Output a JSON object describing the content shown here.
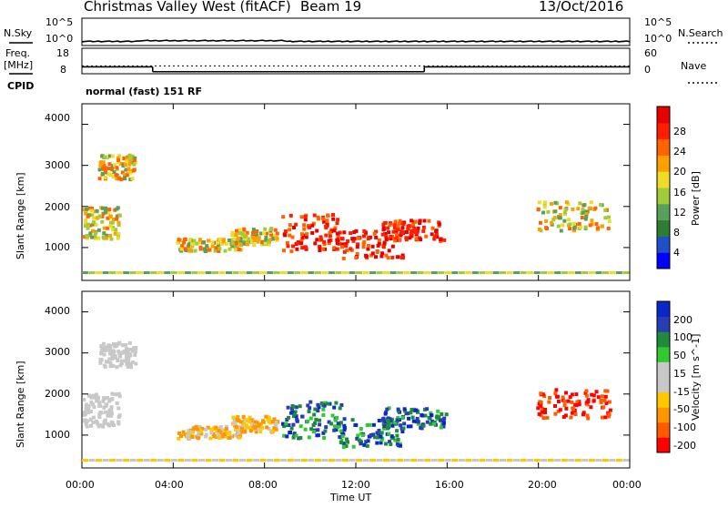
{
  "header": {
    "title": "Christmas Valley West (fitACF)",
    "beam": "Beam 19",
    "date": "13/Oct/2016"
  },
  "top_panels": {
    "nsky_label": "N.Sky",
    "nsearch_label": "N.Search",
    "nsky_ticks": [
      "10^5",
      "10^0"
    ],
    "nsearch_ticks": [
      "10^5",
      "10^0"
    ],
    "freq_label_1": "Freq.",
    "freq_label_2": "[MHz]",
    "freq_ticks": [
      "18",
      "8"
    ],
    "nave_label": "Nave",
    "nave_ticks": [
      "60",
      "0"
    ],
    "cpid_label": "CPID",
    "cpid_value": "normal (fast) 151 RF"
  },
  "colors": {
    "power_scale": [
      "#0000ff",
      "#2050c8",
      "#2e7d32",
      "#5aa05a",
      "#a0cc3c",
      "#f0dc28",
      "#ffa000",
      "#ff6400",
      "#ff1e00",
      "#e60000"
    ],
    "velocity_scale": [
      "#ff0000",
      "#ff5a00",
      "#ff9600",
      "#ffc800",
      "#c8c8c8",
      "#c8c8c8",
      "#32c832",
      "#1e8c3c",
      "#283cb4",
      "#0a28c8"
    ]
  },
  "chart_data": [
    {
      "type": "line",
      "name": "sky-noise",
      "ylabel": "N.Sky",
      "y_scale": "log",
      "ylim": [
        1,
        100000
      ],
      "x": [
        "00:00",
        "04:00",
        "08:00",
        "12:00",
        "16:00",
        "20:00",
        "00:00"
      ],
      "values_log10": [
        0.3,
        0.5,
        0.4,
        0.4,
        0.4,
        0.4,
        0.4
      ]
    },
    {
      "type": "line",
      "name": "frequency",
      "ylabel": "Freq. [MHz]",
      "ylim": [
        8,
        18
      ],
      "xlim_hours": [
        0,
        24
      ],
      "steps": [
        {
          "t_start": 0,
          "t_end": 3.1,
          "freq_mhz": 10.7
        },
        {
          "t_start": 3.1,
          "t_end": 15.0,
          "freq_mhz": 8.8
        },
        {
          "t_start": 15.0,
          "t_end": 24,
          "freq_mhz": 10.7
        }
      ],
      "nave_dotted": 11.1
    },
    {
      "type": "heatmap",
      "name": "power",
      "ylabel": "Slant Range [km]",
      "colorbar_label": "Power [dB]",
      "colorbar_ticks": [
        "28",
        "24",
        "20",
        "16",
        "12",
        "8",
        "4"
      ],
      "yticks": [
        "4000",
        "3000",
        "2000",
        "1000"
      ],
      "ylim": [
        200,
        4500
      ],
      "xlim_hours": [
        0,
        24
      ]
    },
    {
      "type": "heatmap",
      "name": "velocity",
      "ylabel": "Slant Range [km]",
      "colorbar_label": "Velocity [m s^-1]",
      "colorbar_ticks": [
        "200",
        "100",
        "50",
        "15",
        "-15",
        "-50",
        "-100",
        "-200"
      ],
      "yticks": [
        "4000",
        "3000",
        "2000",
        "1000"
      ],
      "ylim": [
        200,
        4500
      ],
      "xlim_hours": [
        0,
        24
      ],
      "xticks": [
        "00:00",
        "04:00",
        "08:00",
        "12:00",
        "16:00",
        "20:00",
        "00:00"
      ],
      "xlabel": "Time UT"
    }
  ]
}
